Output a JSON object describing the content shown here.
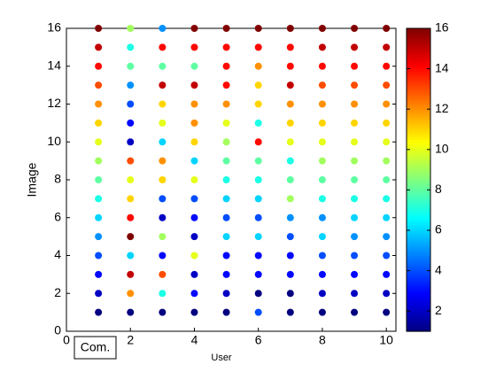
{
  "chart_data": {
    "type": "scatter",
    "xlabel": "User",
    "ylabel": "Image",
    "annotation": "Com.",
    "xlim": [
      0,
      10.3
    ],
    "ylim": [
      0,
      16
    ],
    "xticks": [
      0,
      2,
      4,
      6,
      8,
      10
    ],
    "yticks": [
      0,
      2,
      4,
      6,
      8,
      10,
      12,
      14,
      16
    ],
    "colormap": "jet",
    "clim": [
      1,
      16
    ],
    "cticks": [
      2,
      4,
      6,
      8,
      10,
      12,
      14,
      16
    ],
    "x": [
      1,
      1,
      1,
      1,
      1,
      1,
      1,
      1,
      1,
      1,
      1,
      1,
      1,
      1,
      1,
      1,
      2,
      2,
      2,
      2,
      2,
      2,
      2,
      2,
      2,
      2,
      2,
      2,
      2,
      2,
      2,
      2,
      3,
      3,
      3,
      3,
      3,
      3,
      3,
      3,
      3,
      3,
      3,
      3,
      3,
      3,
      3,
      3,
      4,
      4,
      4,
      4,
      4,
      4,
      4,
      4,
      4,
      4,
      4,
      4,
      4,
      4,
      4,
      4,
      5,
      5,
      5,
      5,
      5,
      5,
      5,
      5,
      5,
      5,
      5,
      5,
      5,
      5,
      5,
      5,
      6,
      6,
      6,
      6,
      6,
      6,
      6,
      6,
      6,
      6,
      6,
      6,
      6,
      6,
      6,
      6,
      7,
      7,
      7,
      7,
      7,
      7,
      7,
      7,
      7,
      7,
      7,
      7,
      7,
      7,
      7,
      7,
      8,
      8,
      8,
      8,
      8,
      8,
      8,
      8,
      8,
      8,
      8,
      8,
      8,
      8,
      8,
      8,
      9,
      9,
      9,
      9,
      9,
      9,
      9,
      9,
      9,
      9,
      9,
      9,
      9,
      9,
      9,
      9,
      10,
      10,
      10,
      10,
      10,
      10,
      10,
      10,
      10,
      10,
      10,
      10,
      10,
      10,
      10,
      10
    ],
    "y": [
      1,
      2,
      3,
      4,
      5,
      6,
      7,
      8,
      9,
      10,
      11,
      12,
      13,
      14,
      15,
      16,
      1,
      2,
      3,
      4,
      5,
      6,
      7,
      8,
      9,
      10,
      11,
      12,
      13,
      14,
      15,
      16,
      1,
      2,
      3,
      4,
      5,
      6,
      7,
      8,
      9,
      10,
      11,
      12,
      13,
      14,
      15,
      16,
      1,
      2,
      3,
      4,
      5,
      6,
      7,
      8,
      9,
      10,
      11,
      12,
      13,
      14,
      15,
      16,
      1,
      2,
      3,
      4,
      5,
      6,
      7,
      8,
      9,
      10,
      11,
      12,
      13,
      14,
      15,
      16,
      1,
      2,
      3,
      4,
      5,
      6,
      7,
      8,
      9,
      10,
      11,
      12,
      13,
      14,
      15,
      16,
      1,
      2,
      3,
      4,
      5,
      6,
      7,
      8,
      9,
      10,
      11,
      12,
      13,
      14,
      15,
      16,
      1,
      2,
      3,
      4,
      5,
      6,
      7,
      8,
      9,
      10,
      11,
      12,
      13,
      14,
      15,
      16,
      1,
      2,
      3,
      4,
      5,
      6,
      7,
      8,
      9,
      10,
      11,
      12,
      13,
      14,
      15,
      16,
      1,
      2,
      3,
      4,
      5,
      6,
      7,
      8,
      9,
      10,
      11,
      12,
      13,
      14,
      15,
      16
    ],
    "c": [
      1,
      2,
      3,
      4,
      5,
      6,
      7,
      8,
      9,
      10,
      11,
      12,
      13,
      14,
      15,
      16,
      1,
      12,
      15,
      6,
      16,
      14,
      11,
      10,
      13,
      2,
      3,
      4,
      5,
      8,
      7,
      9,
      1,
      7,
      13,
      3,
      9,
      2,
      4,
      11,
      12,
      6,
      10,
      11,
      15,
      8,
      14,
      5,
      1,
      3,
      2,
      10,
      2,
      3,
      4,
      10,
      6,
      11,
      12,
      12,
      15,
      8,
      14,
      16,
      1,
      2,
      3,
      3,
      6,
      4,
      6,
      7,
      8,
      9,
      10,
      12,
      14,
      14,
      14,
      16,
      4,
      1,
      3,
      3,
      6,
      4,
      6,
      7,
      8,
      14,
      7,
      11,
      11,
      12,
      14,
      16,
      1,
      1,
      3,
      3,
      4,
      5,
      9,
      8,
      7,
      10,
      11,
      12,
      15,
      14,
      14,
      16,
      1,
      2,
      3,
      4,
      6,
      5,
      7,
      8,
      9,
      10,
      11,
      12,
      13,
      14,
      15,
      16,
      1,
      2,
      3,
      4,
      5,
      6,
      7,
      8,
      9,
      10,
      11,
      12,
      13,
      14,
      15,
      16,
      1,
      2,
      3,
      4,
      5,
      6,
      7,
      8,
      9,
      10,
      11,
      12,
      13,
      14,
      15,
      16
    ]
  }
}
